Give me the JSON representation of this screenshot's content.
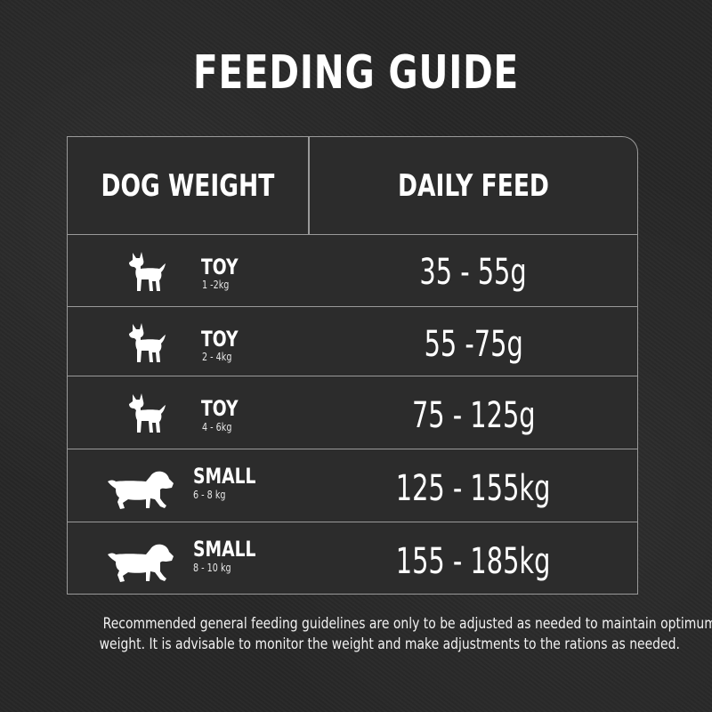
{
  "title": "FEEDING GUIDE",
  "table": {
    "header": {
      "weight_label": "DOG WEIGHT",
      "feed_label": "DAILY FEED"
    },
    "rows": [
      {
        "size": "TOY",
        "weight": "1 -2kg",
        "feed": "35 - 55g",
        "icon": "toy-dog-icon"
      },
      {
        "size": "TOY",
        "weight": "2 - 4kg",
        "feed": "55 -75g",
        "icon": "toy-dog-icon"
      },
      {
        "size": "TOY",
        "weight": "4 - 6kg",
        "feed": "75 - 125g",
        "icon": "toy-dog-icon"
      },
      {
        "size": "SMALL",
        "weight": "6 - 8 kg",
        "feed": "125 - 155kg",
        "icon": "small-dog-icon"
      },
      {
        "size": "SMALL",
        "weight": "8 - 10 kg",
        "feed": "155 - 185kg",
        "icon": "small-dog-icon"
      }
    ]
  },
  "disclaimer": {
    "line1": "Recommended general feeding guidelines are only to be adjusted as needed to maintain optimum",
    "line2": "weight. It is advisable to monitor the weight and make adjustments to the rations as needed."
  },
  "colors": {
    "background": "#272727",
    "table_fill": "#2c2c2c",
    "border": "#9a9a9a",
    "text": "#ffffff"
  }
}
